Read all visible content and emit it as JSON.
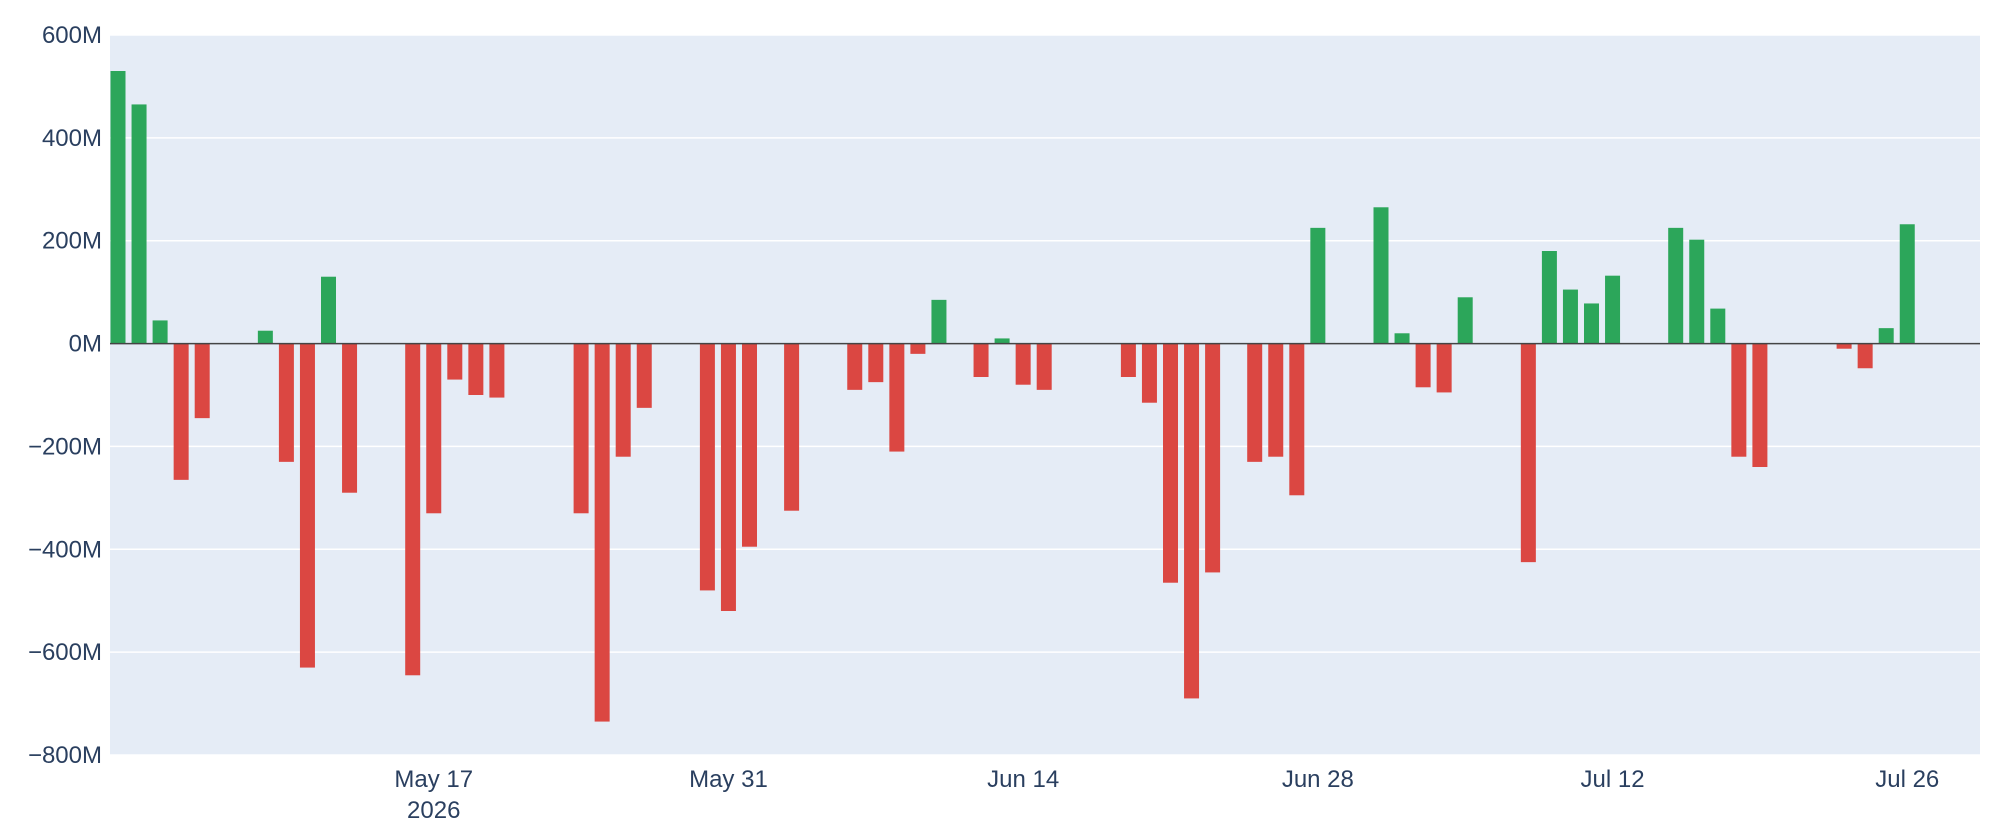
{
  "chart_data": {
    "type": "bar",
    "x_start": "2026-05-02",
    "values_millions": [
      530,
      465,
      45,
      -265,
      -145,
      null,
      null,
      25,
      -230,
      -630,
      130,
      -290,
      null,
      null,
      -645,
      -330,
      -70,
      -100,
      -105,
      null,
      null,
      null,
      -330,
      -735,
      -220,
      -125,
      null,
      null,
      -480,
      -520,
      -395,
      0,
      -325,
      null,
      null,
      -90,
      -75,
      -210,
      -20,
      85,
      null,
      -65,
      10,
      -80,
      -90,
      null,
      null,
      null,
      -65,
      -115,
      -465,
      -690,
      -445,
      null,
      -230,
      -220,
      -295,
      225,
      null,
      null,
      265,
      20,
      -85,
      -95,
      90,
      null,
      null,
      -425,
      180,
      105,
      78,
      132,
      null,
      null,
      225,
      202,
      68,
      -220,
      -240,
      null,
      null,
      null,
      -10,
      -48,
      30,
      232
    ],
    "positive_color": "#2ca65a",
    "negative_color": "#db4742",
    "ylim": [
      -800,
      600
    ],
    "y_ticks": [
      {
        "value": 600,
        "label": "600M"
      },
      {
        "value": 400,
        "label": "400M"
      },
      {
        "value": 200,
        "label": "200M"
      },
      {
        "value": 0,
        "label": "0M"
      },
      {
        "value": -200,
        "label": "−200M"
      },
      {
        "value": -400,
        "label": "−400M"
      },
      {
        "value": -600,
        "label": "−600M"
      },
      {
        "value": -800,
        "label": "−800M"
      }
    ],
    "x_ticks": [
      {
        "date": "2026-05-17",
        "label": "May 17",
        "sublabel": "2026"
      },
      {
        "date": "2026-05-31",
        "label": "May 31"
      },
      {
        "date": "2026-06-14",
        "label": "Jun 14"
      },
      {
        "date": "2026-06-28",
        "label": "Jun 28"
      },
      {
        "date": "2026-07-12",
        "label": "Jul 12"
      },
      {
        "date": "2026-07-26",
        "label": "Jul 26"
      }
    ],
    "grid": true,
    "title": "",
    "xlabel": "",
    "ylabel": ""
  }
}
